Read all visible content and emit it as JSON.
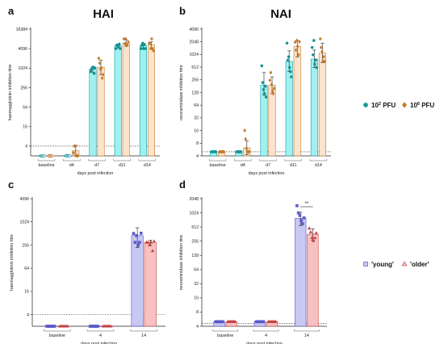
{
  "titles": {
    "left": "HAI",
    "right": "NAI"
  },
  "legend_top": {
    "items": [
      {
        "label": "10",
        "sup": "2",
        "unit": " PFU",
        "color": "#1a9a9a",
        "fill": "#a0f0f2",
        "marker": "circle"
      },
      {
        "label": "10",
        "sup": "6",
        "unit": " PFU",
        "color": "#c47a2c",
        "fill": "#fbe3cc",
        "marker": "diamond"
      }
    ]
  },
  "legend_bottom": {
    "items": [
      {
        "label": "'young'",
        "color": "#5050c8",
        "fill": "#c8c8f2",
        "marker": "square"
      },
      {
        "label": "'older'",
        "color": "#c44040",
        "fill": "#f8c0c0",
        "marker": "triangle"
      }
    ]
  },
  "chart_data": [
    {
      "panel": "a",
      "type": "bar",
      "log_scale": true,
      "log_base": 2,
      "ylabel": "haemagglutinin inhibition titre",
      "xlabel": "days post infection",
      "yticks": [
        4,
        16,
        64,
        256,
        1024,
        4096,
        16384
      ],
      "ylim": [
        2,
        16384
      ],
      "threshold": 4,
      "categories": [
        "baseline",
        "d4",
        "d7",
        "d11",
        "d14"
      ],
      "series": [
        {
          "values": [
            2,
            2,
            950,
            5000,
            5000
          ],
          "err": [
            [
              2,
              2
            ],
            [
              2,
              2.2
            ],
            [
              750,
              1150
            ],
            [
              4300,
              5700
            ],
            [
              4200,
              5800
            ]
          ],
          "points": [
            [
              2,
              2,
              2,
              2,
              2,
              2
            ],
            [
              2,
              2,
              2,
              2,
              2,
              2
            ],
            [
              800,
              950,
              1000,
              1100,
              700,
              1024
            ],
            [
              4096,
              5200,
              5000,
              4800,
              5600,
              4096
            ],
            [
              4096,
              5200,
              6000,
              4096,
              5500,
              4096
            ]
          ]
        },
        {
          "values": [
            2,
            2.9,
            1100,
            6100,
            5300
          ],
          "err": [
            [
              2,
              2
            ],
            [
              2.1,
              4.2
            ],
            [
              650,
              1800
            ],
            [
              4800,
              7600
            ],
            [
              4200,
              6600
            ]
          ],
          "points": [
            [
              2,
              2,
              2,
              2,
              2,
              2
            ],
            [
              2.5,
              4,
              4,
              2,
              2,
              2
            ],
            [
              2048,
              1450,
              950,
              1024,
              500,
              640
            ],
            [
              8192,
              5800,
              8192,
              5200,
              5200,
              6600
            ],
            [
              6000,
              6000,
              4096,
              8192,
              4096,
              3500
            ]
          ]
        }
      ]
    },
    {
      "panel": "b",
      "type": "bar",
      "log_scale": true,
      "log_base": 2,
      "ylabel": "neuraminidase inhibition titre",
      "xlabel": "days post infection",
      "yticks": [
        4,
        8,
        16,
        32,
        64,
        128,
        256,
        512,
        1024,
        2048,
        4096
      ],
      "ylim": [
        4,
        4096
      ],
      "threshold": 5,
      "categories": [
        "baseline",
        "d4",
        "d7",
        "d11",
        "d14"
      ],
      "series": [
        {
          "values": [
            5,
            5,
            190,
            700,
            800
          ],
          "err": [
            [
              5,
              5
            ],
            [
              4.7,
              5.3
            ],
            [
              110,
              380
            ],
            [
              400,
              1250
            ],
            [
              500,
              1300
            ]
          ],
          "points": [
            [
              5,
              5,
              5,
              5,
              5,
              5
            ],
            [
              5,
              5,
              5,
              5,
              5,
              5
            ],
            [
              550,
              220,
              150,
              120,
              180,
              100
            ],
            [
              1900,
              750,
              900,
              500,
              400,
              300
            ],
            [
              1500,
              1000,
              2200,
              600,
              750,
              500
            ]
          ]
        },
        {
          "values": [
            5,
            6.2,
            190,
            1600,
            1100
          ],
          "err": [
            [
              5,
              5
            ],
            [
              4.3,
              9
            ],
            [
              120,
              300
            ],
            [
              900,
              2200
            ],
            [
              650,
              1900
            ]
          ],
          "points": [
            [
              5,
              5,
              5,
              5,
              5,
              5
            ],
            [
              16,
              10,
              6,
              5,
              5,
              5
            ],
            [
              250,
              380,
              200,
              140,
              120,
              160
            ],
            [
              2000,
              1300,
              2200,
              1600,
              1000,
              2048
            ],
            [
              2400,
              1500,
              1200,
              700,
              900,
              700
            ]
          ]
        }
      ]
    },
    {
      "panel": "c",
      "type": "bar",
      "log_scale": true,
      "log_base": 2,
      "ylabel": "haemagglutinin inhibition titre",
      "xlabel": "days post infection",
      "yticks": [
        4,
        16,
        64,
        256,
        1024,
        4096
      ],
      "ylim": [
        2,
        4096
      ],
      "threshold": 4,
      "categories": [
        "baseline",
        "4",
        "14"
      ],
      "series": [
        {
          "name": "'young'",
          "values": [
            2,
            2,
            450
          ],
          "err": [
            [
              2,
              2
            ],
            [
              2,
              2
            ],
            [
              220,
              720
            ]
          ],
          "points": [
            [
              2,
              2,
              2,
              2,
              2,
              2
            ],
            [
              2,
              2,
              2,
              2,
              2,
              2
            ],
            [
              512,
              300,
              450,
              250,
              300,
              520
            ]
          ]
        },
        {
          "name": "'older'",
          "values": [
            2,
            2,
            300
          ],
          "err": [
            [
              2,
              2
            ],
            [
              2,
              2
            ],
            [
              250,
              340
            ]
          ],
          "points": [
            [
              2,
              2,
              2,
              2,
              2,
              2
            ],
            [
              2,
              2,
              2,
              2,
              2,
              2
            ],
            [
              300,
              300,
              256,
              300,
              180,
              320
            ]
          ]
        }
      ]
    },
    {
      "panel": "d",
      "type": "bar",
      "log_scale": true,
      "log_base": 2,
      "ylabel": "neuraminidase inhibition titre",
      "xlabel": "days post infection",
      "yticks": [
        4,
        8,
        16,
        32,
        64,
        128,
        256,
        512,
        1024,
        2048
      ],
      "ylim": [
        4,
        2048
      ],
      "threshold": 4.6,
      "categories": [
        "baseline",
        "4",
        "14"
      ],
      "significance": {
        "label": "**",
        "category": "14"
      },
      "series": [
        {
          "name": "'young'",
          "values": [
            5,
            5,
            780
          ],
          "err": [
            [
              5,
              5
            ],
            [
              5,
              5
            ],
            [
              550,
              1050
            ]
          ],
          "points": [
            [
              5,
              5,
              5,
              5,
              5,
              5
            ],
            [
              5,
              5,
              5,
              5,
              5,
              5
            ],
            [
              1450,
              1024,
              900,
              700,
              600,
              800
            ]
          ]
        },
        {
          "name": "'older'",
          "values": [
            5,
            5,
            360
          ],
          "err": [
            [
              5,
              5
            ],
            [
              5,
              5
            ],
            [
              270,
              470
            ]
          ],
          "points": [
            [
              5,
              5,
              5,
              5,
              5,
              5
            ],
            [
              5,
              5,
              5,
              5,
              5,
              5
            ],
            [
              480,
              400,
              300,
              260,
              300,
              380
            ]
          ]
        }
      ]
    }
  ]
}
